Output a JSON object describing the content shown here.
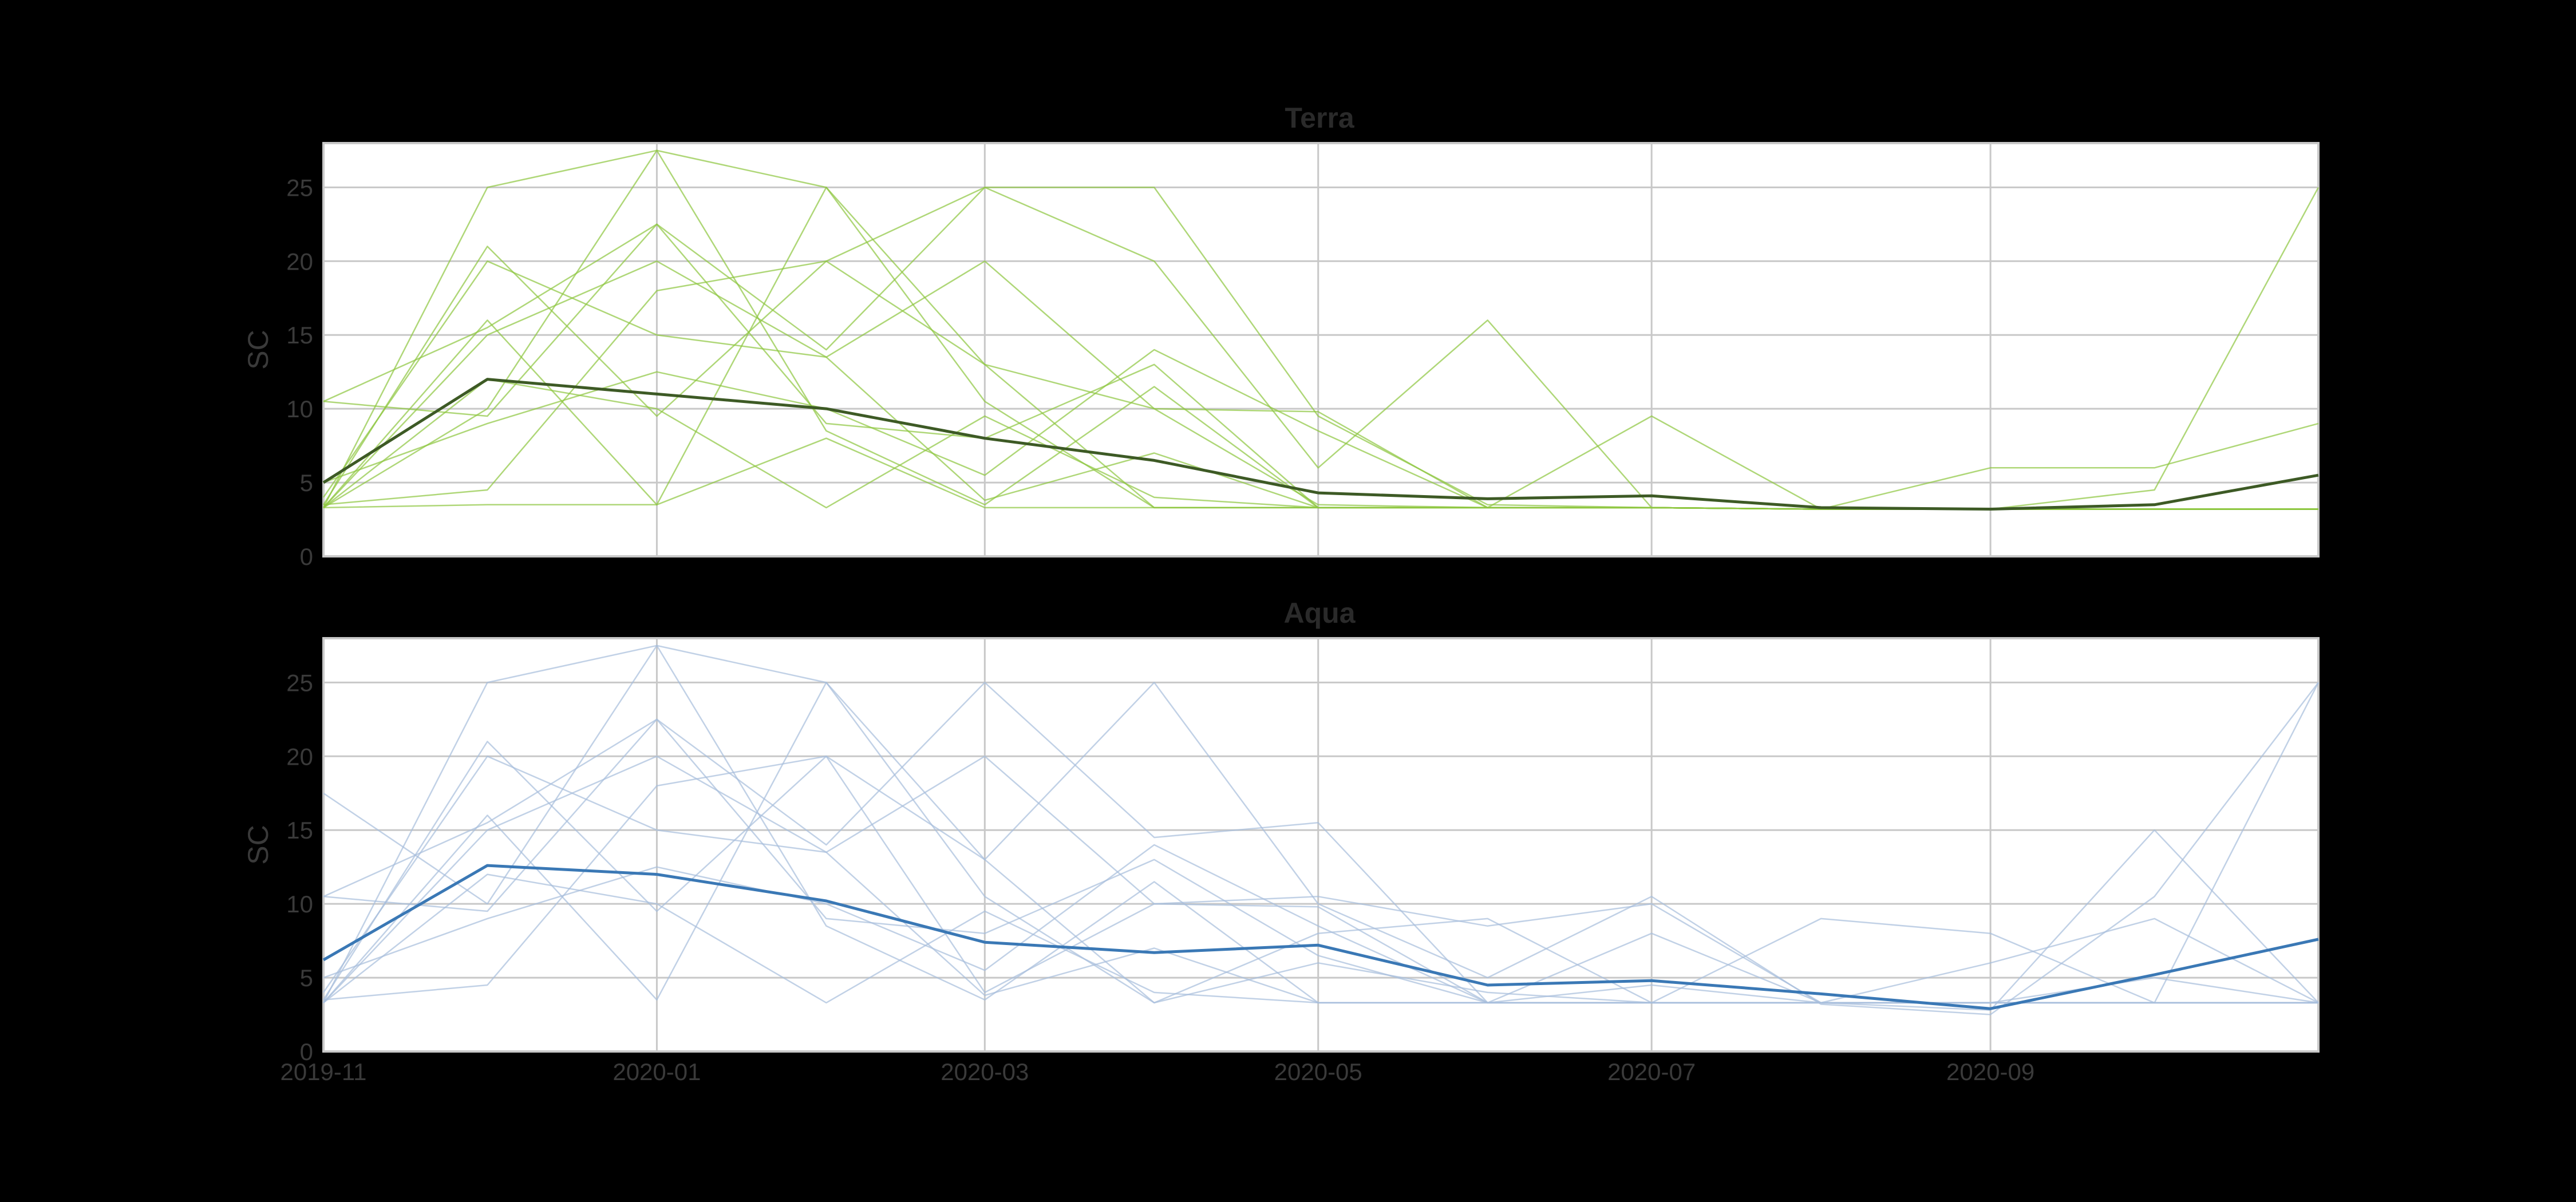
{
  "chart_data": [
    {
      "type": "line",
      "title": "Terra",
      "xlabel": "",
      "ylabel": "SC",
      "ylim": [
        0,
        28
      ],
      "xlim": [
        "2019-11-01",
        "2020-10-31"
      ],
      "yticks": [
        "0",
        "5",
        "10",
        "15",
        "20",
        "25"
      ],
      "xticks": [],
      "grid": true,
      "colors": {
        "individual": "#8dc63f",
        "mean": "#3d5a25",
        "grid": "#c8c8c8",
        "background": "#ffffff"
      },
      "x": [
        "2019-11-01",
        "2019-12-01",
        "2020-01-01",
        "2020-02-01",
        "2020-03-01",
        "2020-04-01",
        "2020-05-01",
        "2020-06-01",
        "2020-07-01",
        "2020-08-01",
        "2020-09-01",
        "2020-10-01",
        "2020-10-31"
      ],
      "series": [
        {
          "role": "mean",
          "values": [
            5.0,
            12.0,
            11.0,
            10.0,
            8.0,
            6.5,
            4.3,
            3.9,
            4.1,
            3.3,
            3.2,
            3.5,
            5.5
          ]
        },
        {
          "role": "individual",
          "values": [
            3.3,
            25.0,
            27.5,
            25.0,
            13.0,
            10.0,
            3.5,
            3.3,
            3.3,
            3.2,
            3.2,
            4.5,
            25.0
          ]
        },
        {
          "role": "individual",
          "values": [
            10.5,
            15.5,
            22.5,
            14.0,
            25.0,
            25.0,
            9.5,
            3.5,
            3.3,
            3.2,
            3.2,
            3.2,
            3.2
          ]
        },
        {
          "role": "individual",
          "values": [
            3.5,
            21.0,
            9.5,
            20.0,
            25.0,
            20.0,
            6.0,
            16.0,
            3.3,
            3.2,
            6.0,
            6.0,
            9.0
          ]
        },
        {
          "role": "individual",
          "values": [
            3.3,
            10.0,
            27.5,
            8.5,
            3.5,
            11.5,
            3.3,
            3.3,
            9.5,
            3.2,
            3.2,
            3.2,
            3.2
          ]
        },
        {
          "role": "individual",
          "values": [
            4.0,
            20.0,
            15.0,
            13.5,
            20.0,
            10.0,
            9.8,
            3.3,
            3.3,
            3.2,
            3.2,
            3.2,
            3.2
          ]
        },
        {
          "role": "individual",
          "values": [
            3.3,
            16.0,
            3.5,
            25.0,
            10.5,
            3.3,
            3.3,
            3.3,
            3.3,
            3.2,
            3.2,
            3.2,
            3.2
          ]
        },
        {
          "role": "individual",
          "values": [
            10.5,
            9.5,
            22.5,
            9.0,
            8.0,
            13.0,
            3.3,
            3.3,
            3.3,
            3.2,
            3.2,
            3.2,
            3.2
          ]
        },
        {
          "role": "individual",
          "values": [
            3.3,
            15.0,
            20.0,
            13.5,
            3.8,
            7.0,
            3.3,
            3.3,
            3.3,
            3.2,
            3.2,
            3.2,
            3.2
          ]
        },
        {
          "role": "individual",
          "values": [
            3.5,
            4.5,
            18.0,
            20.0,
            13.0,
            3.3,
            3.3,
            3.3,
            3.3,
            3.2,
            3.2,
            3.2,
            3.2
          ]
        },
        {
          "role": "individual",
          "values": [
            3.3,
            12.0,
            10.0,
            3.3,
            9.5,
            4.0,
            3.3,
            3.3,
            3.3,
            3.2,
            3.2,
            3.2,
            3.2
          ]
        },
        {
          "role": "individual",
          "values": [
            3.3,
            3.5,
            3.5,
            8.0,
            3.3,
            3.3,
            3.3,
            3.3,
            3.3,
            3.2,
            3.2,
            3.2,
            3.2
          ]
        },
        {
          "role": "individual",
          "values": [
            5.0,
            9.0,
            12.5,
            10.0,
            5.5,
            14.0,
            8.5,
            3.3,
            3.3,
            3.2,
            3.2,
            3.2,
            3.2
          ]
        }
      ]
    },
    {
      "type": "line",
      "title": "Aqua",
      "xlabel": "",
      "ylabel": "SC",
      "ylim": [
        0,
        28
      ],
      "xlim": [
        "2019-11-01",
        "2020-10-31"
      ],
      "yticks": [
        "0",
        "5",
        "10",
        "15",
        "20",
        "25"
      ],
      "xticks": [
        "2019-11",
        "2020-01",
        "2020-03",
        "2020-05",
        "2020-07",
        "2020-09"
      ],
      "grid": true,
      "colors": {
        "individual": "#a6bddb",
        "mean": "#3a78b5",
        "grid": "#c8c8c8",
        "background": "#ffffff"
      },
      "x": [
        "2019-11-01",
        "2019-12-01",
        "2020-01-01",
        "2020-02-01",
        "2020-03-01",
        "2020-04-01",
        "2020-05-01",
        "2020-06-01",
        "2020-07-01",
        "2020-08-01",
        "2020-09-01",
        "2020-10-01",
        "2020-10-31"
      ],
      "series": [
        {
          "role": "mean",
          "values": [
            6.2,
            12.6,
            12.0,
            10.2,
            7.4,
            6.7,
            7.2,
            4.5,
            4.8,
            3.9,
            2.9,
            5.2,
            7.6
          ]
        },
        {
          "role": "individual",
          "values": [
            3.3,
            25.0,
            27.5,
            25.0,
            13.0,
            25.0,
            10.0,
            5.0,
            10.5,
            3.2,
            2.5,
            10.5,
            25.0
          ]
        },
        {
          "role": "individual",
          "values": [
            10.5,
            15.5,
            22.5,
            14.0,
            25.0,
            14.5,
            15.5,
            3.3,
            3.3,
            9.0,
            8.0,
            3.3,
            3.3
          ]
        },
        {
          "role": "individual",
          "values": [
            3.5,
            21.0,
            9.5,
            20.0,
            4.0,
            10.0,
            10.5,
            8.5,
            10.0,
            3.3,
            2.8,
            15.0,
            3.3
          ]
        },
        {
          "role": "individual",
          "values": [
            17.5,
            10.0,
            27.5,
            8.5,
            3.5,
            11.5,
            3.3,
            3.3,
            3.3,
            3.3,
            6.0,
            9.0,
            3.3
          ]
        },
        {
          "role": "individual",
          "values": [
            4.0,
            20.0,
            15.0,
            13.5,
            20.0,
            10.0,
            9.8,
            3.3,
            8.0,
            3.3,
            3.3,
            3.3,
            3.3
          ]
        },
        {
          "role": "individual",
          "values": [
            3.3,
            16.0,
            3.5,
            25.0,
            10.5,
            3.3,
            6.0,
            4.0,
            3.3,
            3.3,
            3.3,
            3.3,
            25.0
          ]
        },
        {
          "role": "individual",
          "values": [
            10.5,
            9.5,
            22.5,
            9.0,
            8.0,
            13.0,
            6.5,
            3.3,
            4.5,
            3.3,
            3.3,
            5.0,
            3.3
          ]
        },
        {
          "role": "individual",
          "values": [
            3.3,
            15.0,
            20.0,
            13.5,
            3.8,
            7.0,
            3.3,
            3.3,
            3.3,
            3.3,
            3.3,
            3.3,
            3.3
          ]
        },
        {
          "role": "individual",
          "values": [
            3.5,
            4.5,
            18.0,
            20.0,
            13.0,
            3.3,
            8.0,
            9.0,
            3.3,
            3.3,
            3.3,
            3.3,
            3.3
          ]
        },
        {
          "role": "individual",
          "values": [
            3.3,
            12.0,
            10.0,
            3.3,
            9.5,
            4.0,
            3.3,
            3.3,
            3.3,
            3.3,
            3.3,
            3.3,
            3.3
          ]
        },
        {
          "role": "individual",
          "values": [
            5.0,
            9.0,
            12.5,
            10.0,
            5.5,
            14.0,
            8.5,
            3.3,
            3.3,
            3.3,
            3.3,
            3.3,
            3.3
          ]
        }
      ]
    }
  ]
}
